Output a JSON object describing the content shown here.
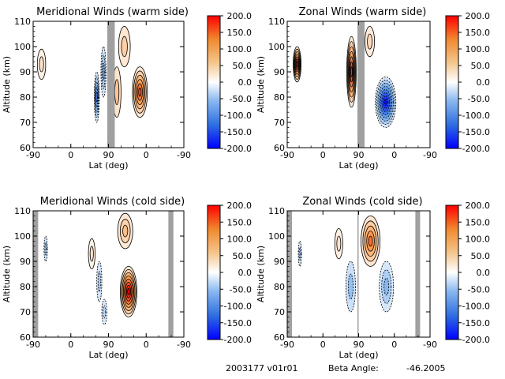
{
  "colorbar": {
    "ticks": [
      "200.0",
      "150.0",
      "100.0",
      "50.0",
      "0.0",
      "-50.0",
      "-100.0",
      "-150.0",
      "-200.0"
    ],
    "range": [
      -200,
      200
    ],
    "colors": {
      "low": "#0000ff",
      "mid_low": "#4f8fe6",
      "zero": "#ffffff",
      "mid_high": "#f0a050",
      "high": "#ff0000"
    }
  },
  "chart_data": [
    {
      "type": "heatmap",
      "title": "Meridional Winds (warm side)",
      "xlabel": "Lat (deg)",
      "ylabel": "Altitude (km)",
      "x_ticks": [
        "-90",
        "0",
        "90",
        "0",
        "-90"
      ],
      "y_ticks": [
        "110",
        "100",
        "90",
        "80",
        "70",
        "60"
      ],
      "ylim": [
        60,
        110
      ],
      "blobs": [
        {
          "x": -70,
          "y": 93,
          "rx": 10,
          "ry": 6,
          "v": 30
        },
        {
          "x": 62,
          "y": 80,
          "rx": 6,
          "ry": 10,
          "v": -120
        },
        {
          "x": 78,
          "y": 90,
          "rx": 6,
          "ry": 10,
          "v": -80
        },
        {
          "x": 110,
          "y": 82,
          "rx": 10,
          "ry": 10,
          "v": 60
        },
        {
          "x": 128,
          "y": 100,
          "rx": 14,
          "ry": 8,
          "v": 50
        },
        {
          "x": 165,
          "y": 82,
          "rx": 18,
          "ry": 10,
          "v": 150
        }
      ],
      "gray_bands": [
        [
          87,
          105
        ]
      ]
    },
    {
      "type": "heatmap",
      "title": "Zonal Winds (warm side)",
      "xlabel": "Lat (deg)",
      "ylabel": "Altitude (km)",
      "x_ticks": [
        "-90",
        "0",
        "90",
        "0",
        "-90"
      ],
      "y_ticks": [
        "110",
        "100",
        "90",
        "80",
        "70",
        "60"
      ],
      "ylim": [
        60,
        110
      ],
      "blobs": [
        {
          "x": -65,
          "y": 93,
          "rx": 10,
          "ry": 7,
          "v": 180
        },
        {
          "x": 72,
          "y": 90,
          "rx": 12,
          "ry": 14,
          "v": 170
        },
        {
          "x": 118,
          "y": 102,
          "rx": 12,
          "ry": 6,
          "v": 40
        },
        {
          "x": 158,
          "y": 78,
          "rx": 26,
          "ry": 10,
          "v": -190
        }
      ],
      "gray_bands": [
        [
          87,
          105
        ]
      ]
    },
    {
      "type": "heatmap",
      "title": "Meridional Winds (cold side)",
      "xlabel": "Lat (deg)",
      "ylabel": "Altitude (km)",
      "x_ticks": [
        "-90",
        "0",
        "90",
        "0",
        "-90"
      ],
      "y_ticks": [
        "110",
        "100",
        "90",
        "80",
        "70",
        "60"
      ],
      "ylim": [
        60,
        110
      ],
      "blobs": [
        {
          "x": -60,
          "y": 95,
          "rx": 4,
          "ry": 5,
          "v": -60
        },
        {
          "x": 50,
          "y": 93,
          "rx": 8,
          "ry": 6,
          "v": 30
        },
        {
          "x": 68,
          "y": 82,
          "rx": 6,
          "ry": 8,
          "v": -50
        },
        {
          "x": 80,
          "y": 70,
          "rx": 6,
          "ry": 5,
          "v": -40
        },
        {
          "x": 130,
          "y": 102,
          "rx": 18,
          "ry": 7,
          "v": 70
        },
        {
          "x": 138,
          "y": 78,
          "rx": 20,
          "ry": 10,
          "v": 200
        }
      ],
      "gray_bands": [
        [
          -90,
          -78
        ],
        [
          233,
          245
        ]
      ]
    },
    {
      "type": "heatmap",
      "title": "Zonal Winds (cold side)",
      "xlabel": "Lat (deg)",
      "ylabel": "Altitude (km)",
      "x_ticks": [
        "-90",
        "0",
        "90",
        "0",
        "-90"
      ],
      "y_ticks": [
        "110",
        "100",
        "90",
        "80",
        "70",
        "60"
      ],
      "ylim": [
        60,
        110
      ],
      "blobs": [
        {
          "x": -58,
          "y": 93,
          "rx": 4,
          "ry": 5,
          "v": -60
        },
        {
          "x": 40,
          "y": 97,
          "rx": 10,
          "ry": 6,
          "v": 30
        },
        {
          "x": 70,
          "y": 80,
          "rx": 12,
          "ry": 10,
          "v": -60
        },
        {
          "x": 120,
          "y": 98,
          "rx": 24,
          "ry": 10,
          "v": 130
        },
        {
          "x": 160,
          "y": 80,
          "rx": 18,
          "ry": 10,
          "v": -70
        }
      ],
      "gray_bands": [
        [
          -90,
          -78
        ],
        [
          87,
          90
        ],
        [
          233,
          245
        ]
      ]
    }
  ],
  "footer": {
    "id": "2003177 v01r01",
    "beta_label": "Beta Angle:",
    "beta_value": "-46.2005"
  }
}
